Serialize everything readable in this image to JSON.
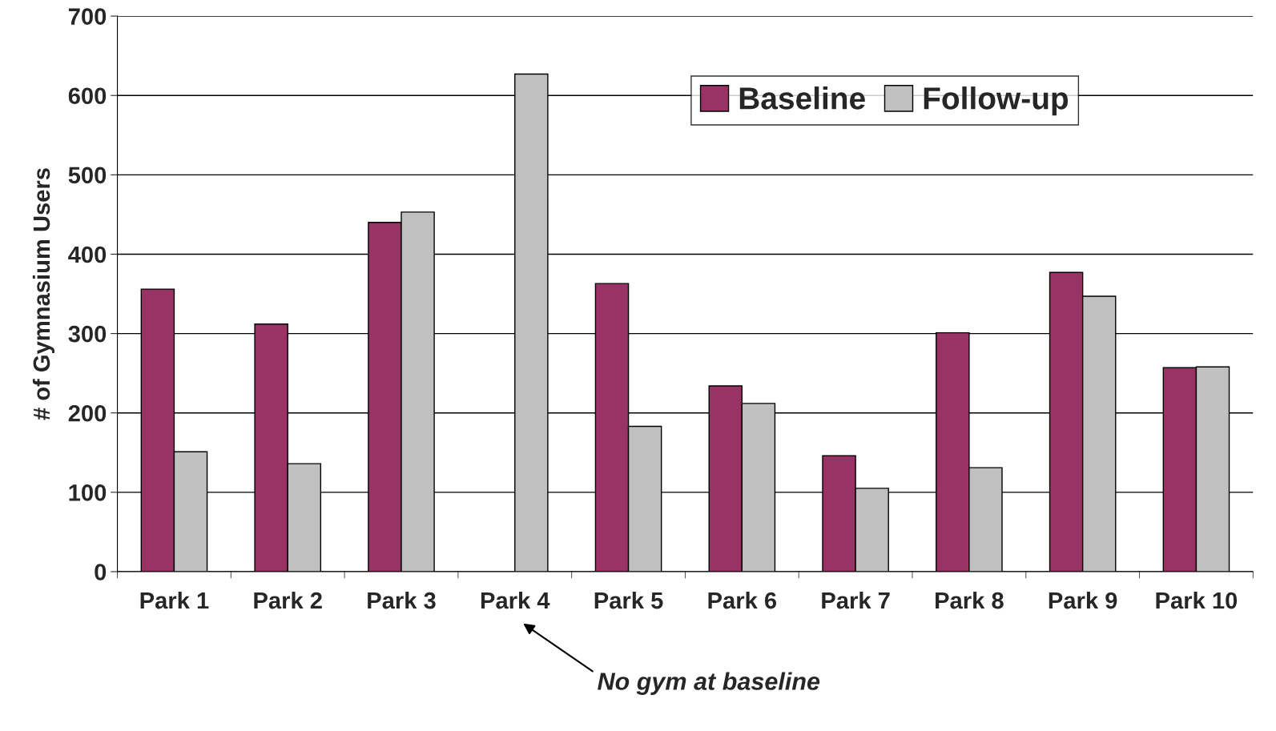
{
  "chart_data": {
    "type": "bar",
    "ylabel": "# of Gymnasium Users",
    "categories": [
      "Park 1",
      "Park 2",
      "Park 3",
      "Park 4",
      "Park 5",
      "Park 6",
      "Park 7",
      "Park 8",
      "Park 9",
      "Park 10"
    ],
    "series": [
      {
        "name": "Baseline",
        "color": "#993366",
        "values": [
          356,
          312,
          440,
          null,
          363,
          234,
          146,
          301,
          377,
          257
        ]
      },
      {
        "name": "Follow-up",
        "color": "#c0c0c0",
        "values": [
          151,
          136,
          453,
          627,
          183,
          212,
          105,
          131,
          347,
          258
        ]
      }
    ],
    "ylim": [
      0,
      700
    ],
    "yticks": [
      0,
      100,
      200,
      300,
      400,
      500,
      600,
      700
    ],
    "grid": "y",
    "legend": "top right",
    "annotations": [
      "No gym at baseline"
    ]
  }
}
